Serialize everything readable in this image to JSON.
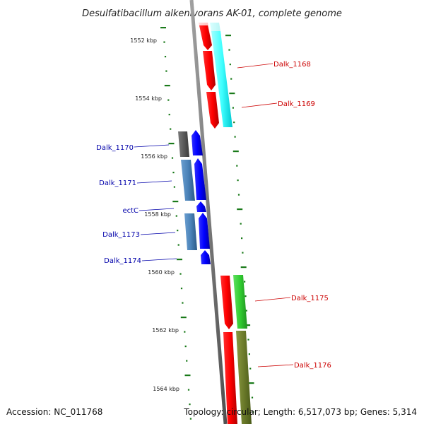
{
  "title": "Desulfatibacillum alkenivorans AK-01, complete genome",
  "accession": "Accession: NC_011768",
  "summary": "Topology: circular; Length: 6,517,073 bp; Genes: 5,314",
  "colors": {
    "backbone": "#808080",
    "ticks": "#1a7a1a",
    "forward_label": "#cc0000",
    "reverse_label": "#0000aa"
  },
  "scale_labels": [
    "1552 kbp",
    "1554 kbp",
    "1556 kbp",
    "1558 kbp",
    "1560 kbp",
    "1562 kbp",
    "1564 kbp"
  ],
  "gene_labels": [
    {
      "text": "Dalk_1168",
      "strand": "forward"
    },
    {
      "text": "Dalk_1169",
      "strand": "forward"
    },
    {
      "text": "Dalk_1170",
      "strand": "reverse"
    },
    {
      "text": "Dalk_1171",
      "strand": "reverse"
    },
    {
      "text": "ectC",
      "strand": "reverse"
    },
    {
      "text": "Dalk_1173",
      "strand": "reverse"
    },
    {
      "text": "Dalk_1174",
      "strand": "reverse"
    },
    {
      "text": "Dalk_1175",
      "strand": "forward"
    },
    {
      "text": "Dalk_1176",
      "strand": "forward"
    }
  ]
}
